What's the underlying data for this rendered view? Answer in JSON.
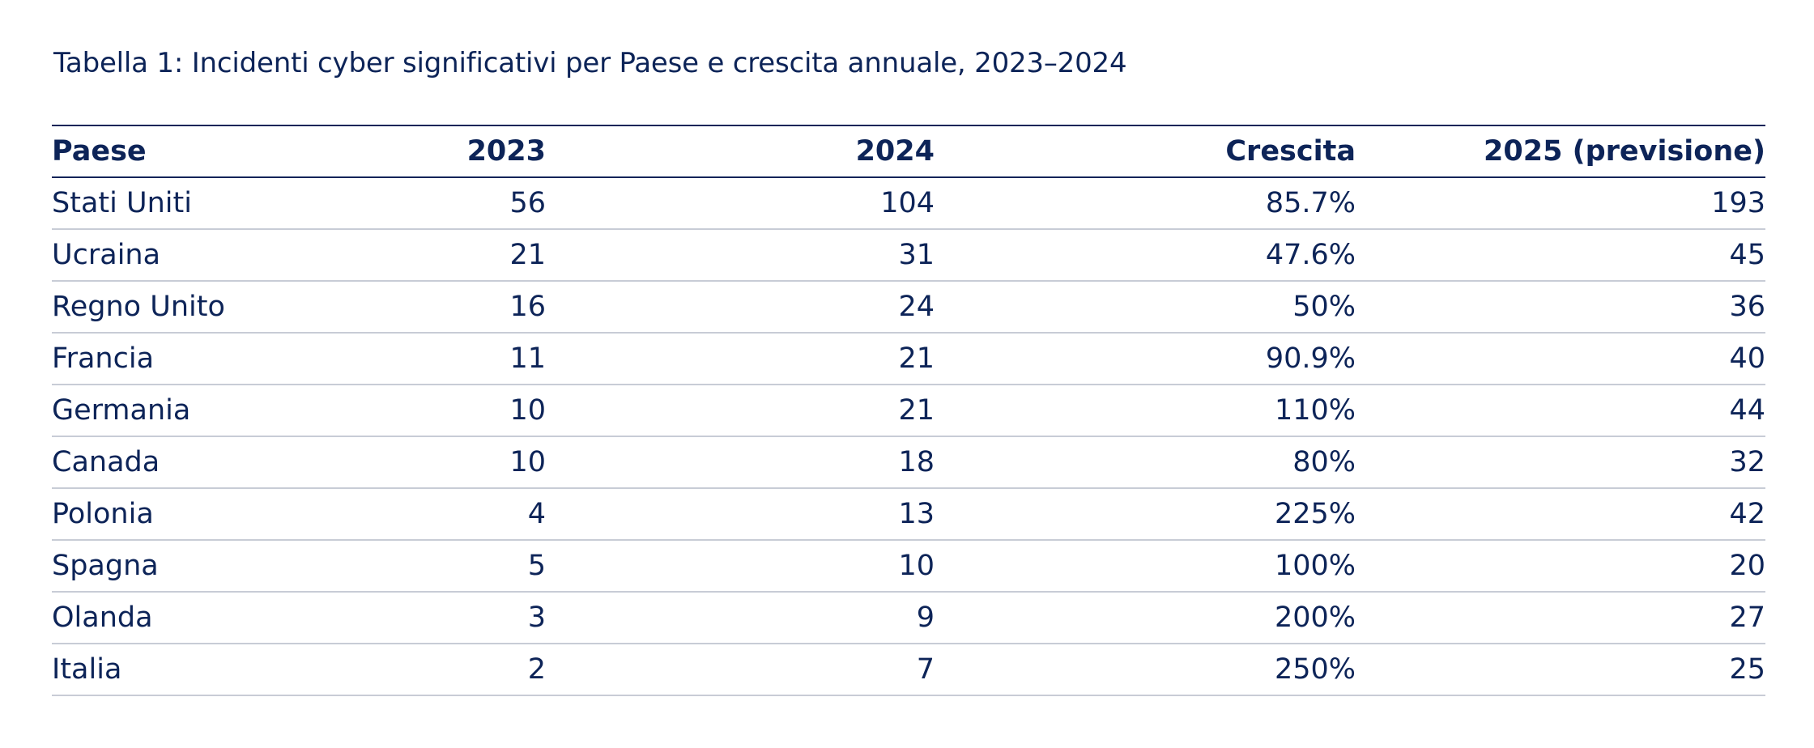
{
  "title": "Tabella 1: Incidenti cyber significativi per Paese e crescita annuale, 2023–2024",
  "headers": [
    "Paese",
    "2023",
    "2024",
    "Crescita",
    "2025 (previsione)"
  ],
  "rows": [
    {
      "country": "Stati Uniti",
      "y2023": "56",
      "y2024": "104",
      "growth": "85.7%",
      "y2025": "193"
    },
    {
      "country": "Ucraina",
      "y2023": "21",
      "y2024": "31",
      "growth": "47.6%",
      "y2025": "45"
    },
    {
      "country": "Regno Unito",
      "y2023": "16",
      "y2024": "24",
      "growth": "50%",
      "y2025": "36"
    },
    {
      "country": "Francia",
      "y2023": "11",
      "y2024": "21",
      "growth": "90.9%",
      "y2025": "40"
    },
    {
      "country": "Germania",
      "y2023": "10",
      "y2024": "21",
      "growth": "110%",
      "y2025": "44"
    },
    {
      "country": "Canada",
      "y2023": "10",
      "y2024": "18",
      "growth": "80%",
      "y2025": "32"
    },
    {
      "country": "Polonia",
      "y2023": "4",
      "y2024": "13",
      "growth": "225%",
      "y2025": "42"
    },
    {
      "country": "Spagna",
      "y2023": "5",
      "y2024": "10",
      "growth": "100%",
      "y2025": "20"
    },
    {
      "country": "Olanda",
      "y2023": "3",
      "y2024": "9",
      "growth": "200%",
      "y2025": "27"
    },
    {
      "country": "Italia",
      "y2023": "2",
      "y2024": "7",
      "growth": "250%",
      "y2025": "25"
    }
  ],
  "colors": {
    "text": "#0d2458",
    "rule": "#0d2458",
    "row_divider": "#c8ccd6"
  }
}
